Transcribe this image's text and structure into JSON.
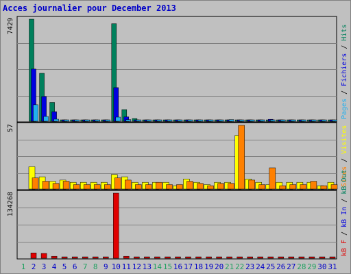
{
  "chart_data": {
    "type": "bar",
    "title": "Acces journalier pour December 2013",
    "x": [
      "1",
      "2",
      "3",
      "4",
      "5",
      "6",
      "7",
      "8",
      "9",
      "10",
      "11",
      "12",
      "13",
      "14",
      "15",
      "16",
      "17",
      "18",
      "19",
      "20",
      "21",
      "22",
      "23",
      "24",
      "25",
      "26",
      "27",
      "28",
      "29",
      "30",
      "31"
    ],
    "weekend_days": [
      "1",
      "7",
      "8",
      "14",
      "15",
      "21",
      "22",
      "28",
      "29"
    ],
    "panels": [
      {
        "name": "visits",
        "max_label": "7429",
        "ylim": [
          0,
          7429
        ],
        "series": [
          {
            "name": "Hits",
            "color": "#00805c",
            "values": [
              0,
              7429,
              3490,
              1370,
              100,
              60,
              60,
              60,
              100,
              7100,
              850,
              200,
              40,
              40,
              40,
              40,
              40,
              40,
              40,
              40,
              40,
              40,
              40,
              40,
              40,
              40,
              40,
              40,
              40,
              40,
              40
            ]
          },
          {
            "name": "Fichiers",
            "color": "#0000e0",
            "values": [
              0,
              3800,
              1800,
              700,
              60,
              40,
              40,
              40,
              60,
              2450,
              320,
              70,
              20,
              20,
              20,
              20,
              20,
              20,
              20,
              20,
              20,
              20,
              20,
              20,
              140,
              20,
              20,
              20,
              20,
              20,
              20
            ]
          },
          {
            "name": "Pages",
            "color": "#20b0f0",
            "values": [
              0,
              1200,
              350,
              150,
              40,
              30,
              30,
              30,
              40,
              300,
              120,
              40,
              20,
              20,
              20,
              20,
              20,
              20,
              20,
              20,
              120,
              20,
              20,
              20,
              100,
              20,
              20,
              20,
              20,
              20,
              20
            ]
          }
        ],
        "right_labels": [
          {
            "text": "Pages",
            "color": "#20b0f0"
          },
          {
            "text": " / ",
            "color": "#000000"
          },
          {
            "text": "Fichiers",
            "color": "#0000e0"
          },
          {
            "text": " / ",
            "color": "#000000"
          },
          {
            "text": "Hits",
            "color": "#00805c"
          }
        ]
      },
      {
        "name": "sites",
        "max_label": "57",
        "ylim": [
          0,
          57
        ],
        "series": [
          {
            "name": "Visites",
            "color": "#ffff00",
            "values": [
              0,
              20,
              11,
              7,
              8,
              6,
              6,
              6,
              6,
              13,
              11,
              6,
              6,
              6,
              6,
              3,
              9,
              6,
              4,
              6,
              6,
              48,
              9,
              6,
              4,
              6,
              6,
              6,
              6,
              3,
              6
            ]
          },
          {
            "name": "Sites",
            "color": "#ff8000",
            "values": [
              0,
              10,
              7,
              5,
              7,
              4,
              4,
              4,
              4,
              10,
              8,
              4,
              4,
              6,
              4,
              4,
              7,
              5,
              3,
              5,
              5,
              57,
              8,
              4,
              19,
              3,
              4,
              4,
              7,
              3,
              4
            ]
          }
        ],
        "right_labels": [
          {
            "text": "Sites",
            "color": "#ff8000"
          },
          {
            "text": " / ",
            "color": "#000000"
          },
          {
            "text": "Visites",
            "color": "#ffff00"
          }
        ]
      },
      {
        "name": "traffic",
        "max_label": "134268",
        "ylim": [
          0,
          134268
        ],
        "series": [
          {
            "name": "kB F",
            "color": "#e00000",
            "values": [
              0,
              11000,
              10000,
              4000,
              1000,
              1000,
              1000,
              1000,
              1000,
              134268,
              4000,
              1000,
              1000,
              1000,
              1000,
              1000,
              1000,
              1000,
              1000,
              1000,
              1000,
              1000,
              1000,
              1000,
              1000,
              1000,
              1000,
              1000,
              1000,
              1000,
              1000
            ]
          }
        ],
        "right_labels": [
          {
            "text": "kB F",
            "color": "#e00000"
          },
          {
            "text": " / ",
            "color": "#000000"
          },
          {
            "text": "kB In",
            "color": "#0000e0"
          },
          {
            "text": " / ",
            "color": "#000000"
          },
          {
            "text": "kB Out",
            "color": "#00805c"
          }
        ]
      }
    ],
    "colors": {
      "weekday": "#0000c8",
      "weekend": "#20a060",
      "gridline": "#808080",
      "panel_bg": "#c0c0c0"
    }
  }
}
